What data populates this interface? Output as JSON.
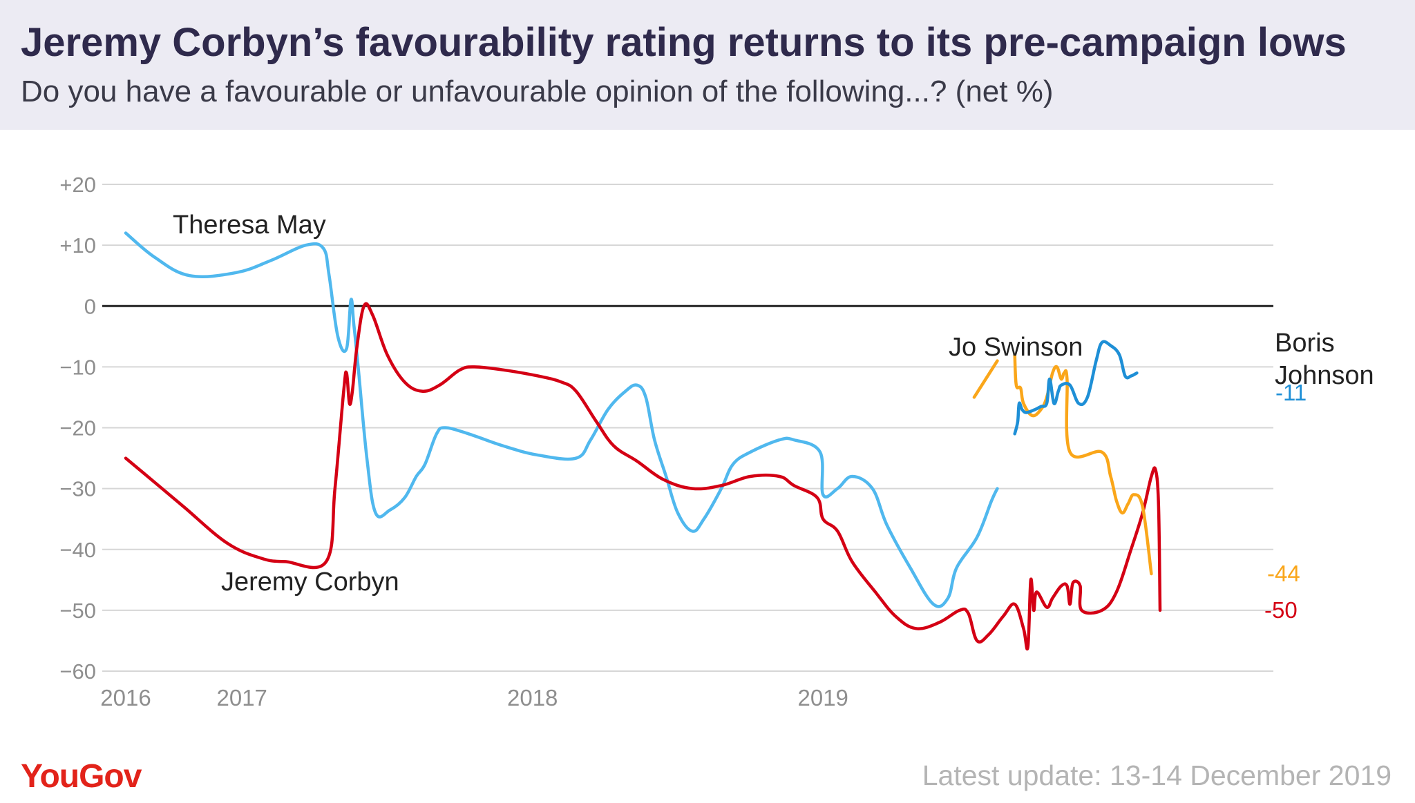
{
  "header": {
    "title": "Jeremy Corbyn’s favourability rating returns to its pre-campaign lows",
    "subtitle": "Do you have a favourable or unfavourable opinion of the following...? (net %)"
  },
  "footer": {
    "brand": "YouGov",
    "update_note": "Latest update: 13-14 December 2019"
  },
  "chart_data": {
    "type": "line",
    "ylim": [
      -60,
      20
    ],
    "xlim": [
      2016.0,
      2019.95
    ],
    "y_ticks": [
      {
        "value": 20,
        "label": "+20"
      },
      {
        "value": 10,
        "label": "+10"
      },
      {
        "value": 0,
        "label": "0"
      },
      {
        "value": -10,
        "label": "−10"
      },
      {
        "value": -20,
        "label": "−20"
      },
      {
        "value": -30,
        "label": "−30"
      },
      {
        "value": -40,
        "label": "−40"
      },
      {
        "value": -50,
        "label": "−50"
      },
      {
        "value": -60,
        "label": "−60"
      }
    ],
    "x_ticks": [
      {
        "value": 2016.0,
        "label": "2016"
      },
      {
        "value": 2016.4,
        "label": "2017"
      },
      {
        "value": 2017.4,
        "label": "2018"
      },
      {
        "value": 2018.4,
        "label": "2019"
      }
    ],
    "grid": true,
    "legend": "none (series labelled directly on the lines)",
    "series": [
      {
        "name": "Theresa May",
        "color": "#50b8ee",
        "points": [
          [
            2016.0,
            12
          ],
          [
            2016.1,
            8
          ],
          [
            2016.22,
            5
          ],
          [
            2016.38,
            5.5
          ],
          [
            2016.5,
            7.5
          ],
          [
            2016.62,
            10
          ],
          [
            2016.68,
            9.5
          ],
          [
            2016.7,
            5
          ],
          [
            2016.73,
            -5
          ],
          [
            2016.76,
            -7
          ],
          [
            2016.775,
            1
          ],
          [
            2016.785,
            -3
          ],
          [
            2016.8,
            -10
          ],
          [
            2016.83,
            -25
          ],
          [
            2016.86,
            -34
          ],
          [
            2016.91,
            -33.5
          ],
          [
            2016.96,
            -31.5
          ],
          [
            2017.0,
            -28
          ],
          [
            2017.03,
            -26
          ],
          [
            2017.07,
            -21
          ],
          [
            2017.1,
            -20
          ],
          [
            2017.18,
            -21
          ],
          [
            2017.3,
            -23
          ],
          [
            2017.42,
            -24.5
          ],
          [
            2017.55,
            -25
          ],
          [
            2017.6,
            -22
          ],
          [
            2017.66,
            -17
          ],
          [
            2017.72,
            -14
          ],
          [
            2017.76,
            -13
          ],
          [
            2017.79,
            -15
          ],
          [
            2017.82,
            -22
          ],
          [
            2017.86,
            -28
          ],
          [
            2017.9,
            -34
          ],
          [
            2017.95,
            -37
          ],
          [
            2017.99,
            -35
          ],
          [
            2018.05,
            -30
          ],
          [
            2018.09,
            -26
          ],
          [
            2018.15,
            -24
          ],
          [
            2018.25,
            -22
          ],
          [
            2018.3,
            -22
          ],
          [
            2018.39,
            -24
          ],
          [
            2018.4,
            -31
          ],
          [
            2018.45,
            -30
          ],
          [
            2018.5,
            -28
          ],
          [
            2018.57,
            -30
          ],
          [
            2018.62,
            -36
          ],
          [
            2018.7,
            -43
          ],
          [
            2018.78,
            -49
          ],
          [
            2018.83,
            -48
          ],
          [
            2018.86,
            -43
          ],
          [
            2018.93,
            -38
          ],
          [
            2018.98,
            -32
          ],
          [
            2019.0,
            -30
          ]
        ]
      },
      {
        "name": "Jeremy Corbyn",
        "color": "#d40014",
        "points": [
          [
            2016.0,
            -25
          ],
          [
            2016.1,
            -29
          ],
          [
            2016.2,
            -33
          ],
          [
            2016.35,
            -39
          ],
          [
            2016.47,
            -41.5
          ],
          [
            2016.55,
            -42
          ],
          [
            2016.69,
            -42
          ],
          [
            2016.72,
            -30
          ],
          [
            2016.75,
            -14
          ],
          [
            2016.76,
            -11
          ],
          [
            2016.77,
            -16
          ],
          [
            2016.78,
            -14
          ],
          [
            2016.795,
            -7
          ],
          [
            2016.82,
            0
          ],
          [
            2016.85,
            -1.5
          ],
          [
            2016.9,
            -8
          ],
          [
            2016.96,
            -12.5
          ],
          [
            2017.02,
            -14
          ],
          [
            2017.08,
            -13
          ],
          [
            2017.15,
            -10.5
          ],
          [
            2017.2,
            -10
          ],
          [
            2017.3,
            -10.5
          ],
          [
            2017.42,
            -11.5
          ],
          [
            2017.5,
            -12.5
          ],
          [
            2017.55,
            -14
          ],
          [
            2017.62,
            -19
          ],
          [
            2017.68,
            -23
          ],
          [
            2017.76,
            -25.5
          ],
          [
            2017.85,
            -28.5
          ],
          [
            2017.95,
            -30
          ],
          [
            2018.05,
            -29.5
          ],
          [
            2018.15,
            -28
          ],
          [
            2018.25,
            -28
          ],
          [
            2018.3,
            -29.5
          ],
          [
            2018.38,
            -31.5
          ],
          [
            2018.4,
            -35
          ],
          [
            2018.45,
            -37
          ],
          [
            2018.5,
            -42
          ],
          [
            2018.58,
            -47
          ],
          [
            2018.65,
            -51
          ],
          [
            2018.72,
            -53
          ],
          [
            2018.8,
            -52
          ],
          [
            2018.87,
            -50
          ],
          [
            2018.9,
            -50.5
          ],
          [
            2018.93,
            -55
          ],
          [
            2018.97,
            -54
          ],
          [
            2019.02,
            -51
          ],
          [
            2019.06,
            -49
          ],
          [
            2019.09,
            -53
          ],
          [
            2019.105,
            -56
          ],
          [
            2019.115,
            -45
          ],
          [
            2019.125,
            -50
          ],
          [
            2019.135,
            -47
          ],
          [
            2019.17,
            -49.5
          ],
          [
            2019.19,
            -48
          ],
          [
            2019.22,
            -46
          ],
          [
            2019.24,
            -46
          ],
          [
            2019.25,
            -49
          ],
          [
            2019.26,
            -45.5
          ],
          [
            2019.285,
            -46
          ],
          [
            2019.29,
            -50
          ],
          [
            2019.36,
            -50
          ],
          [
            2019.41,
            -47
          ],
          [
            2019.46,
            -40
          ],
          [
            2019.5,
            -34
          ],
          [
            2019.53,
            -28
          ],
          [
            2019.545,
            -27
          ],
          [
            2019.555,
            -33
          ],
          [
            2019.56,
            -50
          ]
        ]
      },
      {
        "name": "Jo Swinson",
        "color": "#faa61a",
        "points": [
          [
            2018.92,
            -15
          ],
          [
            2019.0,
            -9
          ],
          null,
          [
            2019.06,
            -8
          ],
          [
            2019.065,
            -13
          ],
          [
            2019.08,
            -13.5
          ],
          [
            2019.09,
            -16
          ],
          [
            2019.12,
            -18
          ],
          [
            2019.15,
            -17
          ],
          [
            2019.17,
            -15
          ],
          [
            2019.19,
            -11
          ],
          [
            2019.205,
            -10
          ],
          [
            2019.22,
            -12
          ],
          [
            2019.23,
            -11
          ],
          [
            2019.24,
            -12
          ],
          [
            2019.25,
            -24
          ],
          [
            2019.36,
            -24
          ],
          [
            2019.39,
            -28
          ],
          [
            2019.41,
            -32
          ],
          [
            2019.43,
            -34
          ],
          [
            2019.45,
            -32.5
          ],
          [
            2019.47,
            -31
          ],
          [
            2019.5,
            -33
          ],
          [
            2019.53,
            -44
          ]
        ]
      },
      {
        "name": "Boris Johnson",
        "color": "#1e8fd6",
        "points": [
          [
            2019.06,
            -21
          ],
          [
            2019.07,
            -19
          ],
          [
            2019.075,
            -16
          ],
          [
            2019.085,
            -17
          ],
          [
            2019.1,
            -17.5
          ],
          [
            2019.13,
            -17
          ],
          [
            2019.15,
            -16.5
          ],
          [
            2019.17,
            -16
          ],
          [
            2019.18,
            -12
          ],
          [
            2019.195,
            -16
          ],
          [
            2019.21,
            -14
          ],
          [
            2019.22,
            -13
          ],
          [
            2019.25,
            -13
          ],
          [
            2019.28,
            -16
          ],
          [
            2019.31,
            -15
          ],
          [
            2019.34,
            -9
          ],
          [
            2019.36,
            -6
          ],
          [
            2019.39,
            -6.5
          ],
          [
            2019.42,
            -8
          ],
          [
            2019.44,
            -11.5
          ],
          [
            2019.46,
            -11.5
          ],
          [
            2019.48,
            -11
          ]
        ]
      }
    ],
    "line_labels": [
      {
        "series": "Theresa May",
        "lines": [
          "Theresa May"
        ]
      },
      {
        "series": "Jeremy Corbyn",
        "lines": [
          "Jeremy Corbyn"
        ]
      },
      {
        "series": "Jo Swinson",
        "lines": [
          "Jo Swinson"
        ]
      },
      {
        "series": "Boris Johnson",
        "lines": [
          "Boris",
          "Johnson"
        ]
      }
    ],
    "end_values": [
      {
        "series": "Boris Johnson",
        "label": "-11",
        "value": -11,
        "color": "#1e8fd6"
      },
      {
        "series": "Jo Swinson",
        "label": "-44",
        "value": -44,
        "color": "#faa61a"
      },
      {
        "series": "Jeremy Corbyn",
        "label": "-50",
        "value": -50,
        "color": "#d40014"
      }
    ]
  }
}
